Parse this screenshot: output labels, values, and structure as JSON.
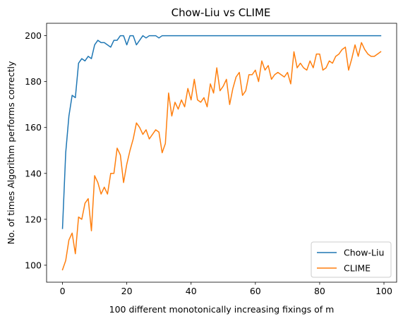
{
  "chart_data": {
    "type": "line",
    "title": "Chow-Liu vs CLIME",
    "xlabel": "100 different monotonically increasing fixings of m",
    "ylabel": "No. of times Algorithm performs correctly",
    "xlim": [
      -4.95,
      103.95
    ],
    "ylim": [
      92.6,
      205.4
    ],
    "xticks": [
      0,
      20,
      40,
      60,
      80,
      100
    ],
    "yticks": [
      100,
      120,
      140,
      160,
      180,
      200
    ],
    "grid": false,
    "legend_position": "lower-right",
    "series": [
      {
        "name": "Chow-Liu",
        "color": "#1f77b4",
        "values": [
          116,
          149,
          165,
          174,
          173,
          188,
          190,
          189,
          191,
          190,
          196,
          198,
          197,
          197,
          196,
          195,
          198,
          198,
          200,
          200,
          196,
          200,
          200,
          196,
          198,
          200,
          199,
          200,
          200,
          200,
          199,
          200,
          200,
          200,
          200,
          200,
          200,
          200,
          200,
          200,
          200,
          200,
          200,
          200,
          200,
          200,
          200,
          200,
          200,
          200,
          200,
          200,
          200,
          200,
          200,
          200,
          200,
          200,
          200,
          200,
          200,
          200,
          200,
          200,
          200,
          200,
          200,
          200,
          200,
          200,
          200,
          200,
          200,
          200,
          200,
          200,
          200,
          200,
          200,
          200,
          200,
          200,
          200,
          200,
          200,
          200,
          200,
          200,
          200,
          200,
          200,
          200,
          200,
          200,
          200,
          200,
          200,
          200,
          200,
          200
        ]
      },
      {
        "name": "CLIME",
        "color": "#ff7f0e",
        "values": [
          98,
          102,
          111,
          114,
          105,
          121,
          120,
          127,
          129,
          115,
          139,
          136,
          131,
          134,
          131,
          140,
          140,
          151,
          148,
          136,
          144,
          150,
          155,
          162,
          160,
          157,
          159,
          155,
          157,
          159,
          158,
          149,
          153,
          175,
          165,
          171,
          168,
          172,
          169,
          177,
          172,
          181,
          172,
          171,
          173,
          169,
          179,
          175,
          186,
          176,
          178,
          181,
          170,
          177,
          182,
          184,
          174,
          176,
          183,
          183,
          185,
          180,
          189,
          185,
          187,
          181,
          183,
          184,
          183,
          182,
          184,
          179,
          193,
          186,
          188,
          186,
          185,
          189,
          186,
          192,
          192,
          185,
          186,
          189,
          188,
          191,
          192,
          194,
          195,
          185,
          190,
          196,
          191,
          197,
          194,
          192,
          191,
          191,
          192,
          193
        ]
      }
    ]
  }
}
